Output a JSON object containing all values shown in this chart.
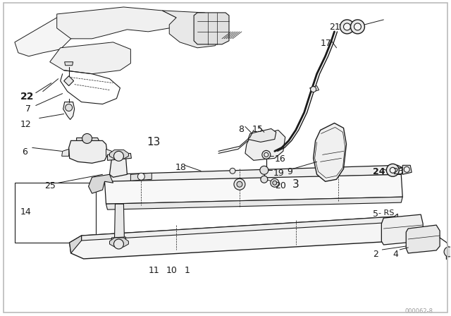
{
  "background_color": "#ffffff",
  "border_color": "#bbbbbb",
  "diagram_color": "#1a1a1a",
  "watermark": "000062-8",
  "figsize": [
    6.4,
    4.48
  ],
  "dpi": 100
}
